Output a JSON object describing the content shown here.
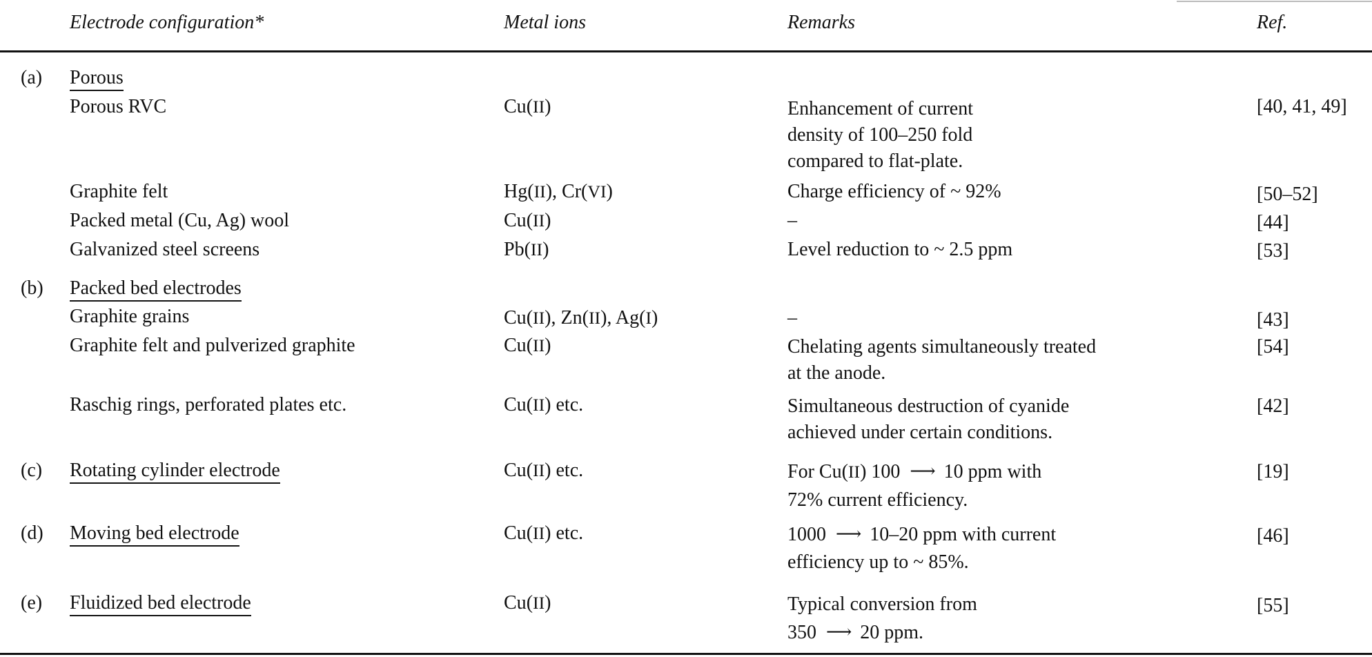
{
  "header": {
    "electrode": "Electrode configuration*",
    "ions": "Metal ions",
    "remarks": "Remarks",
    "ref": "Ref."
  },
  "groups": [
    {
      "label": "(a)",
      "name": "Porous"
    },
    {
      "label": "(b)",
      "name": "Packed bed electrodes"
    },
    {
      "label": "(c)",
      "name": "Rotating cylinder electrode"
    },
    {
      "label": "(d)",
      "name": "Moving bed electrode"
    },
    {
      "label": "(e)",
      "name": "Fluidized bed electrode"
    }
  ],
  "rows": {
    "porous_rvc": {
      "electrode": "Porous RVC",
      "ion_base": "Cu",
      "ion_ox": "II",
      "remarks": [
        "Enhancement of current",
        "density of 100–250 fold",
        "compared to flat-plate."
      ],
      "ref": "[40, 41, 49]"
    },
    "graphite_felt": {
      "electrode": "Graphite felt",
      "ion_a_base": "Hg",
      "ion_a_ox": "II",
      "ion_sep": ", ",
      "ion_b_base": "Cr",
      "ion_b_ox": "VI",
      "remarks": "Charge efficiency of ~ 92%",
      "ref": "[50–52]"
    },
    "packed_metal_wool": {
      "electrode": "Packed metal (Cu, Ag) wool",
      "ion_base": "Cu",
      "ion_ox": "II",
      "remarks": "–",
      "ref": "[44]"
    },
    "galvanized_steel": {
      "electrode": "Galvanized steel screens",
      "ion_base": "Pb",
      "ion_ox": "II",
      "remarks": "Level reduction to ~ 2.5 ppm",
      "ref": "[53]"
    },
    "graphite_grains": {
      "electrode": "Graphite grains",
      "ion_a_base": "Cu",
      "ion_a_ox": "II",
      "ion_b_base": "Zn",
      "ion_b_ox": "II",
      "ion_c_base": "Ag",
      "ion_c_ox": "I",
      "sep": ", ",
      "remarks": "–",
      "ref": "[43]"
    },
    "graphite_felt_pulverized": {
      "electrode": "Graphite felt and pulverized graphite",
      "ion_base": "Cu",
      "ion_ox": "II",
      "remarks": [
        "Chelating agents simultaneously treated",
        "at the anode."
      ],
      "ref": "[54]"
    },
    "raschig": {
      "electrode": "Raschig rings, perforated plates etc.",
      "ion_base": "Cu",
      "ion_ox": "II",
      "ion_suffix": " etc.",
      "remarks": [
        "Simultaneous destruction of cyanide",
        "achieved under certain conditions."
      ],
      "ref": "[42]"
    },
    "rotating": {
      "ion_base": "Cu",
      "ion_ox": "II",
      "ion_suffix": " etc.",
      "remarks_line1_pre": "For Cu(",
      "remarks_line1_ox": "II",
      "remarks_line1_mid": ") 100",
      "remarks_line1_post": "10 ppm with",
      "remarks_line2": "72% current efficiency.",
      "ref": "[19]"
    },
    "moving": {
      "ion_base": "Cu",
      "ion_ox": "II",
      "ion_suffix": " etc.",
      "remarks_line1_pre": "1000",
      "remarks_line1_post": "10–20 ppm with current",
      "remarks_line2": "efficiency up to ~ 85%.",
      "ref": "[46]"
    },
    "fluidized": {
      "ion_base": "Cu",
      "ion_ox": "II",
      "remarks_line1": "Typical conversion from",
      "remarks_line2_pre": "350",
      "remarks_line2_post": "20 ppm.",
      "ref": "[55]"
    }
  },
  "symbols": {
    "arrow": "⟶",
    "open": "(",
    "close": ")"
  }
}
